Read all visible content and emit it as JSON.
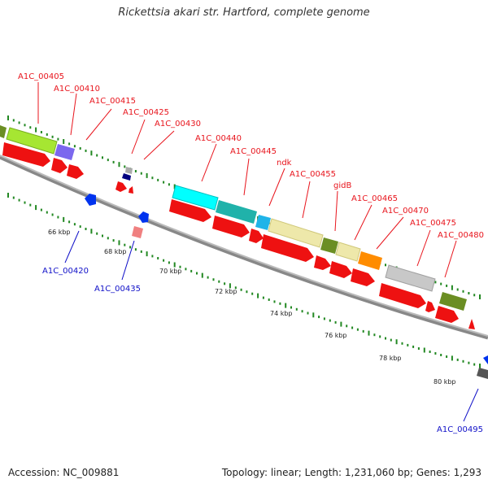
{
  "title": "Rickettsia akari str. Hartford, complete genome",
  "accession_text": "Accession: NC_009881",
  "summary_text": "Topology: linear; Length: 1,231,060 bp; Genes: 1,293",
  "colors": {
    "label_red": "#e8141c",
    "label_blue": "#1010c8",
    "gene_red": "#ee1111",
    "backbone": "#999999",
    "tick_dots": "#228822"
  },
  "scale_ticks": [
    "66 kbp",
    "68 kbp",
    "70 kbp",
    "72 kbp",
    "74 kbp",
    "76 kbp",
    "78 kbp",
    "80 kbp"
  ],
  "gene_labels_top": [
    "A1C_00405",
    "A1C_00410",
    "A1C_00415",
    "A1C_00425",
    "A1C_00430",
    "A1C_00440",
    "A1C_00445",
    "ndk",
    "A1C_00455",
    "gidB",
    "A1C_00465",
    "A1C_00470",
    "A1C_00475",
    "A1C_00480"
  ],
  "gene_labels_bottom": [
    "A1C_00420",
    "A1C_00435",
    "A1C_00495"
  ]
}
